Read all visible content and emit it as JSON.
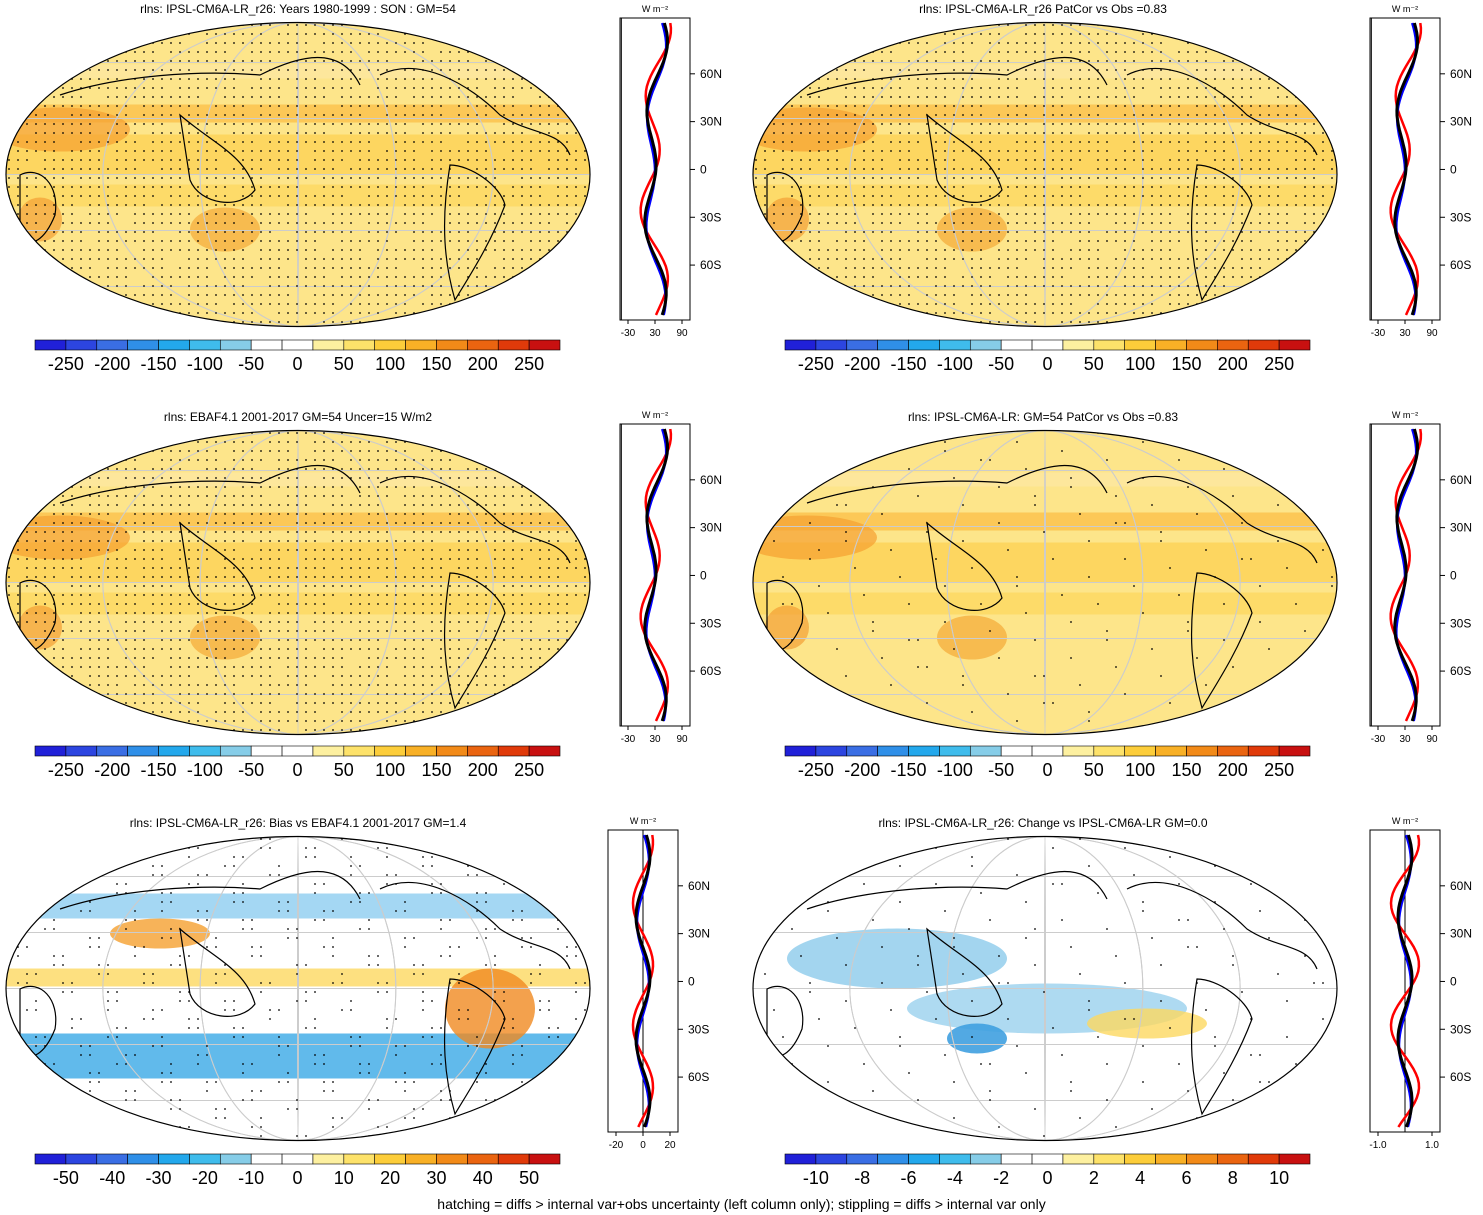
{
  "footnote": "hatching = diffs > internal var+obs uncertainty (left column only); stippling = diffs > internal var only",
  "profile_unit": "W m⁻²",
  "colors": {
    "model": "#000000",
    "obs": "#0000ff",
    "bias": "#ff0000"
  },
  "palette": [
    "#2020d8",
    "#2c45e0",
    "#3a6ee4",
    "#2f8fe8",
    "#23a8ec",
    "#3fbcec",
    "#86cde8",
    "#ffffff",
    "#ffffff",
    "#fdf0a0",
    "#fde26a",
    "#fccd3a",
    "#f8b026",
    "#f28a18",
    "#ea6410",
    "#e03a0a",
    "#c81010"
  ],
  "chart_data": [
    {
      "id": "p1",
      "type": "heatmap",
      "title": "rlns: IPSL-CM6A-LR_r26: Years 1980-1999 : SON : GM=54",
      "colorbar_labels": [
        "-250",
        "-200",
        "-150",
        "-100",
        "-50",
        "0",
        "50",
        "100",
        "150",
        "200",
        "250"
      ],
      "profile_xticks": [
        "-30",
        "30",
        "90"
      ],
      "profile_xrange": [
        -50,
        100
      ],
      "lat_ticks": [
        "60N",
        "30N",
        "0",
        "30S",
        "60S"
      ]
    },
    {
      "id": "p2",
      "type": "heatmap",
      "title": "rlns: IPSL-CM6A-LR_r26 PatCor vs Obs =0.83",
      "colorbar_labels": [
        "-250",
        "-200",
        "-150",
        "-100",
        "-50",
        "0",
        "50",
        "100",
        "150",
        "200",
        "250"
      ],
      "profile_xticks": [
        "-30",
        "30",
        "90"
      ],
      "profile_xrange": [
        -50,
        100
      ],
      "lat_ticks": [
        "60N",
        "30N",
        "0",
        "30S",
        "60S"
      ]
    },
    {
      "id": "p3",
      "type": "heatmap",
      "title": "rlns: EBAF4.1 2001-2017 GM=54 Uncer=15 W/m2",
      "colorbar_labels": [
        "-250",
        "-200",
        "-150",
        "-100",
        "-50",
        "0",
        "50",
        "100",
        "150",
        "200",
        "250"
      ],
      "profile_xticks": [
        "-30",
        "30",
        "90"
      ],
      "profile_xrange": [
        -50,
        100
      ],
      "lat_ticks": [
        "60N",
        "30N",
        "0",
        "30S",
        "60S"
      ]
    },
    {
      "id": "p4",
      "type": "heatmap",
      "title": "rlns: IPSL-CM6A-LR: GM=54 PatCor vs Obs =0.83",
      "colorbar_labels": [
        "-250",
        "-200",
        "-150",
        "-100",
        "-50",
        "0",
        "50",
        "100",
        "150",
        "200",
        "250"
      ],
      "profile_xticks": [
        "-30",
        "30",
        "90"
      ],
      "profile_xrange": [
        -50,
        100
      ],
      "lat_ticks": [
        "60N",
        "30N",
        "0",
        "30S",
        "60S"
      ]
    },
    {
      "id": "p5",
      "type": "heatmap",
      "title": "rlns: IPSL-CM6A-LR_r26: Bias vs EBAF4.1 2001-2017  GM=1.4",
      "colorbar_labels": [
        "-50",
        "-40",
        "-30",
        "-20",
        "-10",
        "0",
        "10",
        "20",
        "30",
        "40",
        "50"
      ],
      "profile_xticks": [
        "-20",
        "0",
        "20"
      ],
      "profile_xrange": [
        -20,
        20
      ],
      "lat_ticks": [
        "60N",
        "30N",
        "0",
        "30S",
        "60S"
      ]
    },
    {
      "id": "p6",
      "type": "heatmap",
      "title": "rlns: IPSL-CM6A-LR_r26: Change vs IPSL-CM6A-LR GM=0.0",
      "colorbar_labels": [
        "-10",
        "-8",
        "-6",
        "-4",
        "-2",
        "0",
        "2",
        "4",
        "6",
        "8",
        "10"
      ],
      "profile_xticks": [
        "-1.0",
        "1.0"
      ],
      "profile_xrange": [
        -2,
        2
      ],
      "lat_ticks": [
        "60N",
        "30N",
        "0",
        "30S",
        "60S"
      ]
    }
  ]
}
